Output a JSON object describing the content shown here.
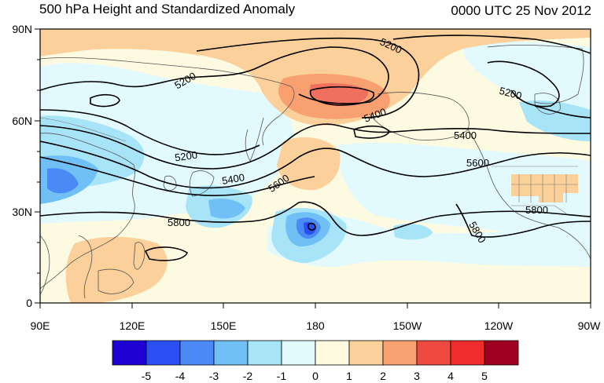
{
  "header": {
    "title": "500 hPa Height and Standardized Anomaly",
    "timestamp": "0000 UTC 25 Nov 2012"
  },
  "axes": {
    "lat_labels": [
      "90N",
      "60N",
      "30N",
      "0"
    ],
    "lon_labels": [
      "90E",
      "120E",
      "150E",
      "180",
      "150W",
      "120W",
      "90W"
    ]
  },
  "contour_labels": [
    "5200",
    "5200",
    "5200",
    "5200",
    "5400",
    "5400",
    "5400",
    "5600",
    "5600",
    "5800",
    "5800",
    "5800"
  ],
  "colorbar": {
    "ticks": [
      "-5",
      "-4",
      "-3",
      "-2",
      "-1",
      "0",
      "1",
      "2",
      "3",
      "4",
      "5"
    ],
    "colors": [
      "#1e00d2",
      "#2a50f5",
      "#4a8af5",
      "#70c0f5",
      "#a8e4f8",
      "#e2fafd",
      "#fdfae0",
      "#fbd09a",
      "#f8a070",
      "#f04a40",
      "#f02c2c",
      "#a00020"
    ]
  },
  "colors": {
    "coast": "#555555",
    "contour": "#000000",
    "land_box_fill": "#f8c890"
  }
}
